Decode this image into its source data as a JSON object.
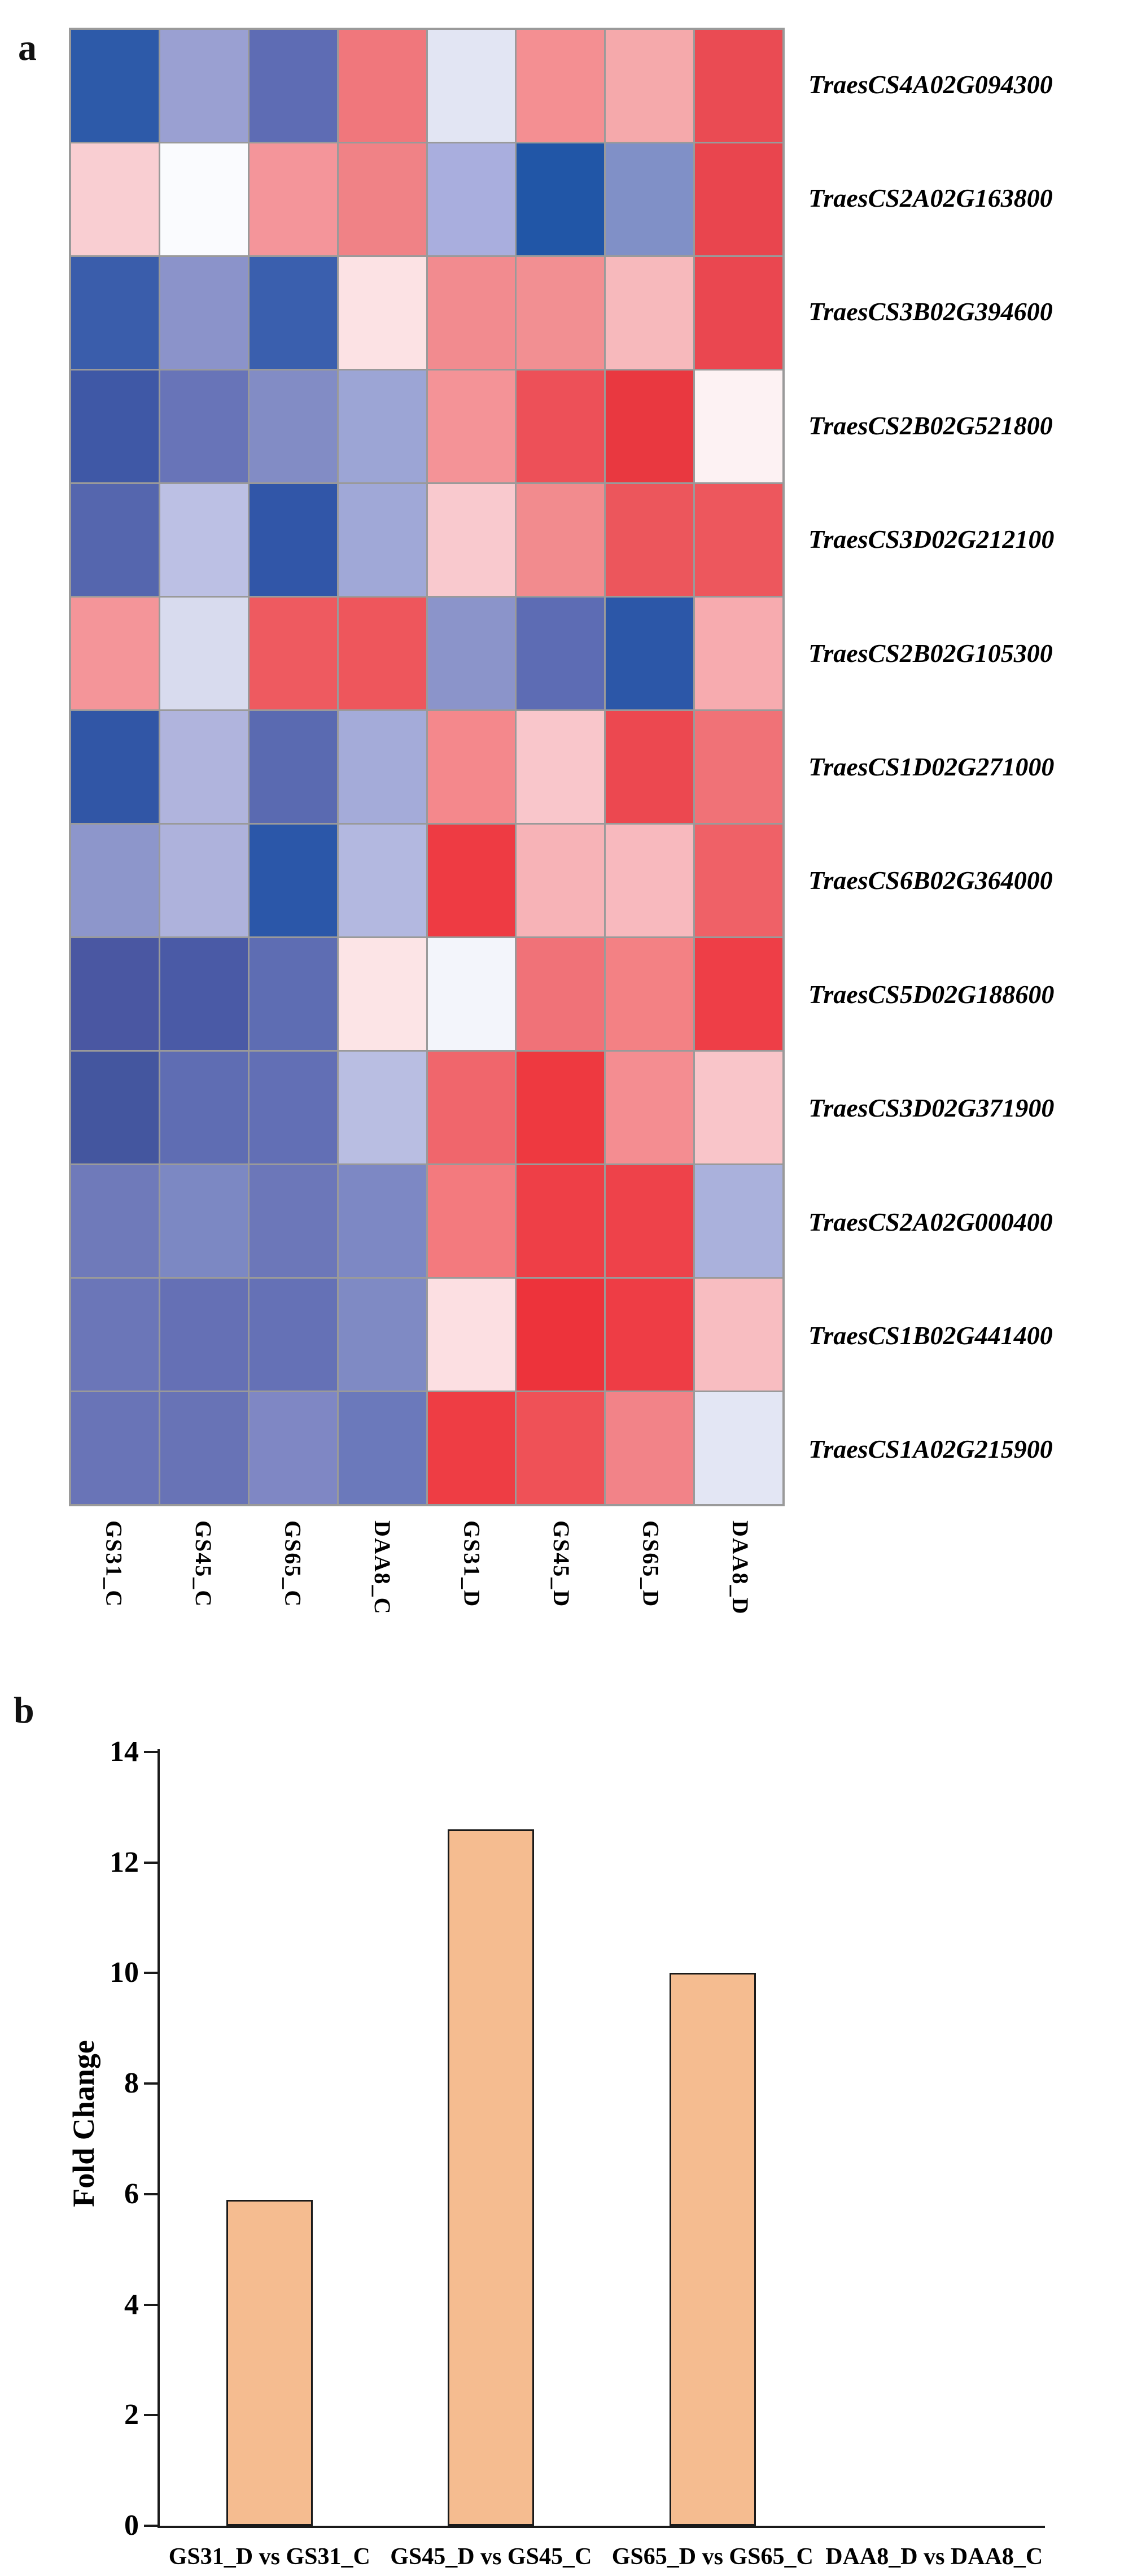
{
  "panel_a": {
    "label": "a",
    "grid_color": "#9a9a9a",
    "samples": [
      "GS31_C",
      "GS45_C",
      "GS65_C",
      "DAA8_C",
      "GS31_D",
      "GS45_D",
      "GS65_D",
      "DAA8_D"
    ],
    "genes": [
      "TraesCS4A02G094300",
      "TraesCS2A02G163800",
      "TraesCS3B02G394600",
      "TraesCS2B02G521800",
      "TraesCS3D02G212100",
      "TraesCS2B02G105300",
      "TraesCS1D02G271000",
      "TraesCS6B02G364000",
      "TraesCS5D02G188600",
      "TraesCS3D02G371900",
      "TraesCS2A02G000400",
      "TraesCS1B02G441400",
      "TraesCS1A02G215900"
    ],
    "cell_colors": [
      [
        "#2d5aa9",
        "#9aa0d2",
        "#5e6cb4",
        "#f0777c",
        "#e2e5f3",
        "#f48f92",
        "#f5a9ab",
        "#ea4b53"
      ],
      [
        "#f9ced2",
        "#fafbfe",
        "#f4959a",
        "#f08286",
        "#a9aede",
        "#2156a7",
        "#8090c7",
        "#e9454e"
      ],
      [
        "#3a5dab",
        "#8b93ca",
        "#3a5fae",
        "#fce2e4",
        "#f28b8f",
        "#f28f92",
        "#f7b9bc",
        "#ea4750"
      ],
      [
        "#3f58a6",
        "#6874b8",
        "#828cc5",
        "#9ca5d5",
        "#f49397",
        "#ed5058",
        "#e93840",
        "#fdf2f3"
      ],
      [
        "#5566ae",
        "#bcc0e4",
        "#3156a8",
        "#a0a8d7",
        "#f9c9ce",
        "#f28b8e",
        "#ec565c",
        "#ed575d"
      ],
      [
        "#f49599",
        "#d8dbee",
        "#ee5a60",
        "#ee565c",
        "#8b94ca",
        "#5d6cb4",
        "#2c57a8",
        "#f7abaf"
      ],
      [
        "#3156a6",
        "#b0b4dd",
        "#5a6ab1",
        "#a4abd9",
        "#f4888c",
        "#f9c6cb",
        "#ec4850",
        "#f07277"
      ],
      [
        "#8d96cb",
        "#aeb2dc",
        "#2b57a9",
        "#b3b8e0",
        "#ee3b43",
        "#f7b3b7",
        "#f8b9be",
        "#ef6167"
      ],
      [
        "#4a57a2",
        "#4a5aa6",
        "#5e6db3",
        "#fce4e6",
        "#f3f5fb",
        "#f07278",
        "#f38184",
        "#ee3e47"
      ],
      [
        "#44569f",
        "#5f6db3",
        "#626fb5",
        "#b9bee2",
        "#f0666c",
        "#ee3940",
        "#f48d91",
        "#f9c5c9"
      ],
      [
        "#6f7aba",
        "#7c88c3",
        "#6c77b9",
        "#7d88c4",
        "#f37a7e",
        "#ee3f47",
        "#ee424a",
        "#aab1dc"
      ],
      [
        "#6b76b8",
        "#6570b5",
        "#6571b6",
        "#7f8ac4",
        "#fcdfe2",
        "#ed333b",
        "#ee3d45",
        "#f8bdc1"
      ],
      [
        "#6974b7",
        "#6873b6",
        "#7f87c4",
        "#6b79bb",
        "#ee3d44",
        "#ef5157",
        "#f28388",
        "#e3e6f4"
      ]
    ]
  },
  "panel_b": {
    "label": "b",
    "ylabel": "Fold Change",
    "yticks": [
      0,
      2,
      4,
      6,
      8,
      10,
      12,
      14
    ],
    "ylim": [
      0,
      14
    ],
    "categories": [
      "GS31_D vs GS31_C",
      "GS45_D vs GS45_C",
      "GS65_D vs GS65_C",
      "DAA8_D vs DAA8_C"
    ],
    "values": [
      5.9,
      12.6,
      10.0,
      0
    ],
    "bar_color": "#f5bc90",
    "axis_color": "#1a1a1a"
  },
  "chart_data": [
    {
      "type": "heatmap",
      "title": "",
      "rows": [
        "TraesCS4A02G094300",
        "TraesCS2A02G163800",
        "TraesCS3B02G394600",
        "TraesCS2B02G521800",
        "TraesCS3D02G212100",
        "TraesCS2B02G105300",
        "TraesCS1D02G271000",
        "TraesCS6B02G364000",
        "TraesCS5D02G188600",
        "TraesCS3D02G371900",
        "TraesCS2A02G000400",
        "TraesCS1B02G441400",
        "TraesCS1A02G215900"
      ],
      "columns": [
        "GS31_C",
        "GS45_C",
        "GS65_C",
        "DAA8_C",
        "GS31_D",
        "GS45_D",
        "GS65_D",
        "DAA8_D"
      ],
      "cell_colors_note": "blue = low expression, red = high expression; exact numeric values not printed on figure",
      "palette": [
        "#2156a7",
        "#fafbfe",
        "#ed333b"
      ],
      "legend_position": "none",
      "grid": true
    },
    {
      "type": "bar",
      "categories": [
        "GS31_D vs GS31_C",
        "GS45_D vs GS45_C",
        "GS65_D vs GS65_C",
        "DAA8_D vs DAA8_C"
      ],
      "values": [
        5.9,
        12.6,
        10.0,
        0
      ],
      "title": "",
      "xlabel": "",
      "ylabel": "Fold Change",
      "ylim": [
        0,
        14
      ],
      "yticks": [
        0,
        2,
        4,
        6,
        8,
        10,
        12,
        14
      ],
      "grid": false,
      "legend_position": "none",
      "bar_color": "#f5bc90"
    }
  ]
}
